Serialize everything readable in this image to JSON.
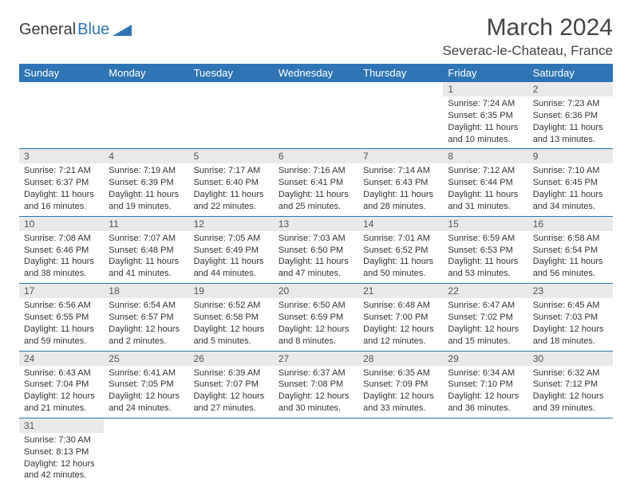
{
  "brand": {
    "part1": "General",
    "part2": "Blue",
    "triangle_color": "#2f75b5"
  },
  "header": {
    "month_title": "March 2024",
    "location": "Severac-le-Chateau, France"
  },
  "day_labels": [
    "Sunday",
    "Monday",
    "Tuesday",
    "Wednesday",
    "Thursday",
    "Friday",
    "Saturday"
  ],
  "colors": {
    "header_bg": "#2f75b5",
    "header_fg": "#ffffff",
    "daynum_bg": "#e9e9e9",
    "row_border": "#2f75b5",
    "text": "#333333"
  },
  "weeks": [
    [
      null,
      null,
      null,
      null,
      null,
      {
        "n": "1",
        "sr": "Sunrise: 7:24 AM",
        "ss": "Sunset: 6:35 PM",
        "dl": "Daylight: 11 hours and 10 minutes."
      },
      {
        "n": "2",
        "sr": "Sunrise: 7:23 AM",
        "ss": "Sunset: 6:36 PM",
        "dl": "Daylight: 11 hours and 13 minutes."
      }
    ],
    [
      {
        "n": "3",
        "sr": "Sunrise: 7:21 AM",
        "ss": "Sunset: 6:37 PM",
        "dl": "Daylight: 11 hours and 16 minutes."
      },
      {
        "n": "4",
        "sr": "Sunrise: 7:19 AM",
        "ss": "Sunset: 6:39 PM",
        "dl": "Daylight: 11 hours and 19 minutes."
      },
      {
        "n": "5",
        "sr": "Sunrise: 7:17 AM",
        "ss": "Sunset: 6:40 PM",
        "dl": "Daylight: 11 hours and 22 minutes."
      },
      {
        "n": "6",
        "sr": "Sunrise: 7:16 AM",
        "ss": "Sunset: 6:41 PM",
        "dl": "Daylight: 11 hours and 25 minutes."
      },
      {
        "n": "7",
        "sr": "Sunrise: 7:14 AM",
        "ss": "Sunset: 6:43 PM",
        "dl": "Daylight: 11 hours and 28 minutes."
      },
      {
        "n": "8",
        "sr": "Sunrise: 7:12 AM",
        "ss": "Sunset: 6:44 PM",
        "dl": "Daylight: 11 hours and 31 minutes."
      },
      {
        "n": "9",
        "sr": "Sunrise: 7:10 AM",
        "ss": "Sunset: 6:45 PM",
        "dl": "Daylight: 11 hours and 34 minutes."
      }
    ],
    [
      {
        "n": "10",
        "sr": "Sunrise: 7:08 AM",
        "ss": "Sunset: 6:46 PM",
        "dl": "Daylight: 11 hours and 38 minutes."
      },
      {
        "n": "11",
        "sr": "Sunrise: 7:07 AM",
        "ss": "Sunset: 6:48 PM",
        "dl": "Daylight: 11 hours and 41 minutes."
      },
      {
        "n": "12",
        "sr": "Sunrise: 7:05 AM",
        "ss": "Sunset: 6:49 PM",
        "dl": "Daylight: 11 hours and 44 minutes."
      },
      {
        "n": "13",
        "sr": "Sunrise: 7:03 AM",
        "ss": "Sunset: 6:50 PM",
        "dl": "Daylight: 11 hours and 47 minutes."
      },
      {
        "n": "14",
        "sr": "Sunrise: 7:01 AM",
        "ss": "Sunset: 6:52 PM",
        "dl": "Daylight: 11 hours and 50 minutes."
      },
      {
        "n": "15",
        "sr": "Sunrise: 6:59 AM",
        "ss": "Sunset: 6:53 PM",
        "dl": "Daylight: 11 hours and 53 minutes."
      },
      {
        "n": "16",
        "sr": "Sunrise: 6:58 AM",
        "ss": "Sunset: 6:54 PM",
        "dl": "Daylight: 11 hours and 56 minutes."
      }
    ],
    [
      {
        "n": "17",
        "sr": "Sunrise: 6:56 AM",
        "ss": "Sunset: 6:55 PM",
        "dl": "Daylight: 11 hours and 59 minutes."
      },
      {
        "n": "18",
        "sr": "Sunrise: 6:54 AM",
        "ss": "Sunset: 6:57 PM",
        "dl": "Daylight: 12 hours and 2 minutes."
      },
      {
        "n": "19",
        "sr": "Sunrise: 6:52 AM",
        "ss": "Sunset: 6:58 PM",
        "dl": "Daylight: 12 hours and 5 minutes."
      },
      {
        "n": "20",
        "sr": "Sunrise: 6:50 AM",
        "ss": "Sunset: 6:59 PM",
        "dl": "Daylight: 12 hours and 8 minutes."
      },
      {
        "n": "21",
        "sr": "Sunrise: 6:48 AM",
        "ss": "Sunset: 7:00 PM",
        "dl": "Daylight: 12 hours and 12 minutes."
      },
      {
        "n": "22",
        "sr": "Sunrise: 6:47 AM",
        "ss": "Sunset: 7:02 PM",
        "dl": "Daylight: 12 hours and 15 minutes."
      },
      {
        "n": "23",
        "sr": "Sunrise: 6:45 AM",
        "ss": "Sunset: 7:03 PM",
        "dl": "Daylight: 12 hours and 18 minutes."
      }
    ],
    [
      {
        "n": "24",
        "sr": "Sunrise: 6:43 AM",
        "ss": "Sunset: 7:04 PM",
        "dl": "Daylight: 12 hours and 21 minutes."
      },
      {
        "n": "25",
        "sr": "Sunrise: 6:41 AM",
        "ss": "Sunset: 7:05 PM",
        "dl": "Daylight: 12 hours and 24 minutes."
      },
      {
        "n": "26",
        "sr": "Sunrise: 6:39 AM",
        "ss": "Sunset: 7:07 PM",
        "dl": "Daylight: 12 hours and 27 minutes."
      },
      {
        "n": "27",
        "sr": "Sunrise: 6:37 AM",
        "ss": "Sunset: 7:08 PM",
        "dl": "Daylight: 12 hours and 30 minutes."
      },
      {
        "n": "28",
        "sr": "Sunrise: 6:35 AM",
        "ss": "Sunset: 7:09 PM",
        "dl": "Daylight: 12 hours and 33 minutes."
      },
      {
        "n": "29",
        "sr": "Sunrise: 6:34 AM",
        "ss": "Sunset: 7:10 PM",
        "dl": "Daylight: 12 hours and 36 minutes."
      },
      {
        "n": "30",
        "sr": "Sunrise: 6:32 AM",
        "ss": "Sunset: 7:12 PM",
        "dl": "Daylight: 12 hours and 39 minutes."
      }
    ],
    [
      {
        "n": "31",
        "sr": "Sunrise: 7:30 AM",
        "ss": "Sunset: 8:13 PM",
        "dl": "Daylight: 12 hours and 42 minutes."
      },
      null,
      null,
      null,
      null,
      null,
      null
    ]
  ]
}
